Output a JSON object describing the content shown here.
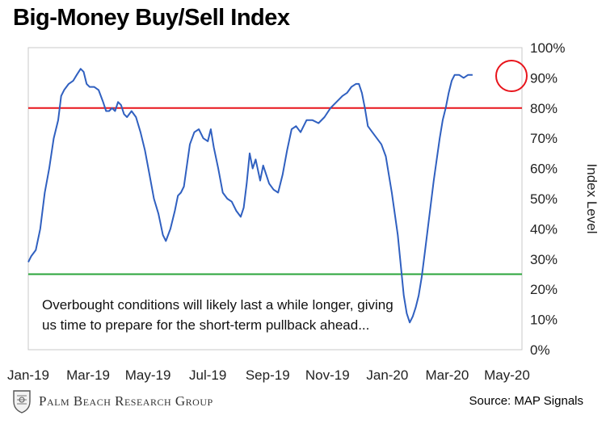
{
  "chart_data": {
    "type": "line",
    "title": "Big-Money Buy/Sell Index",
    "ylabel": "Index Level",
    "ylim": [
      0,
      100
    ],
    "yticks": [
      "0%",
      "10%",
      "20%",
      "30%",
      "40%",
      "50%",
      "60%",
      "70%",
      "80%",
      "90%",
      "100%"
    ],
    "xticks": [
      "Jan-19",
      "Mar-19",
      "May-19",
      "Jul-19",
      "Sep-19",
      "Nov-19",
      "Jan-20",
      "Mar-20",
      "May-20"
    ],
    "xlim_months": [
      0,
      16.5
    ],
    "grid": false,
    "reference_lines": [
      {
        "value": 80,
        "color": "#e8141b"
      },
      {
        "value": 25,
        "color": "#2aa43a"
      }
    ],
    "series": [
      {
        "color": "#3060c0",
        "points": [
          [
            0.0,
            29
          ],
          [
            0.1,
            31
          ],
          [
            0.25,
            33
          ],
          [
            0.4,
            40
          ],
          [
            0.55,
            52
          ],
          [
            0.7,
            60
          ],
          [
            0.85,
            70
          ],
          [
            1.0,
            76
          ],
          [
            1.1,
            84
          ],
          [
            1.2,
            86
          ],
          [
            1.35,
            88
          ],
          [
            1.5,
            89
          ],
          [
            1.62,
            91
          ],
          [
            1.75,
            93
          ],
          [
            1.85,
            92
          ],
          [
            1.95,
            88
          ],
          [
            2.05,
            87
          ],
          [
            2.2,
            87
          ],
          [
            2.35,
            86
          ],
          [
            2.5,
            82
          ],
          [
            2.6,
            79
          ],
          [
            2.7,
            79
          ],
          [
            2.8,
            80
          ],
          [
            2.9,
            79
          ],
          [
            3.0,
            82
          ],
          [
            3.1,
            81
          ],
          [
            3.2,
            78
          ],
          [
            3.3,
            77
          ],
          [
            3.45,
            79
          ],
          [
            3.6,
            77
          ],
          [
            3.75,
            72
          ],
          [
            3.9,
            66
          ],
          [
            4.05,
            58
          ],
          [
            4.2,
            50
          ],
          [
            4.35,
            45
          ],
          [
            4.5,
            38
          ],
          [
            4.6,
            36
          ],
          [
            4.75,
            40
          ],
          [
            4.9,
            46
          ],
          [
            5.0,
            51
          ],
          [
            5.1,
            52
          ],
          [
            5.2,
            54
          ],
          [
            5.3,
            61
          ],
          [
            5.4,
            68
          ],
          [
            5.55,
            72
          ],
          [
            5.7,
            73
          ],
          [
            5.85,
            70
          ],
          [
            6.0,
            69
          ],
          [
            6.1,
            73
          ],
          [
            6.2,
            67
          ],
          [
            6.35,
            60
          ],
          [
            6.5,
            52
          ],
          [
            6.65,
            50
          ],
          [
            6.8,
            49
          ],
          [
            6.95,
            46
          ],
          [
            7.1,
            44
          ],
          [
            7.2,
            47
          ],
          [
            7.3,
            55
          ],
          [
            7.4,
            65
          ],
          [
            7.5,
            60
          ],
          [
            7.6,
            63
          ],
          [
            7.75,
            56
          ],
          [
            7.85,
            61
          ],
          [
            7.95,
            58
          ],
          [
            8.05,
            55
          ],
          [
            8.2,
            53
          ],
          [
            8.35,
            52
          ],
          [
            8.5,
            58
          ],
          [
            8.65,
            66
          ],
          [
            8.8,
            73
          ],
          [
            8.95,
            74
          ],
          [
            9.1,
            72
          ],
          [
            9.3,
            76
          ],
          [
            9.5,
            76
          ],
          [
            9.7,
            75
          ],
          [
            9.9,
            77
          ],
          [
            10.1,
            80
          ],
          [
            10.3,
            82
          ],
          [
            10.5,
            84
          ],
          [
            10.65,
            85
          ],
          [
            10.8,
            87
          ],
          [
            10.95,
            88
          ],
          [
            11.05,
            88
          ],
          [
            11.15,
            85
          ],
          [
            11.25,
            80
          ],
          [
            11.35,
            74
          ],
          [
            11.5,
            72
          ],
          [
            11.65,
            70
          ],
          [
            11.8,
            68
          ],
          [
            11.95,
            64
          ],
          [
            12.05,
            58
          ],
          [
            12.15,
            52
          ],
          [
            12.25,
            45
          ],
          [
            12.35,
            38
          ],
          [
            12.45,
            28
          ],
          [
            12.55,
            18
          ],
          [
            12.65,
            12
          ],
          [
            12.75,
            9
          ],
          [
            12.85,
            11
          ],
          [
            12.95,
            14
          ],
          [
            13.05,
            18
          ],
          [
            13.15,
            24
          ],
          [
            13.25,
            32
          ],
          [
            13.35,
            40
          ],
          [
            13.45,
            48
          ],
          [
            13.55,
            56
          ],
          [
            13.65,
            63
          ],
          [
            13.75,
            70
          ],
          [
            13.85,
            76
          ],
          [
            13.95,
            80
          ],
          [
            14.05,
            85
          ],
          [
            14.15,
            89
          ],
          [
            14.25,
            91
          ],
          [
            14.4,
            91
          ],
          [
            14.55,
            90
          ],
          [
            14.7,
            91
          ],
          [
            14.85,
            91
          ]
        ]
      }
    ]
  },
  "annotation": {
    "line1": "Overbought conditions will likely last a while longer, giving",
    "line2": "us time to prepare for the short-term pullback ahead..."
  },
  "highlight_circle_color": "#e8141b",
  "footer": {
    "brand": "Palm Beach Research Group",
    "source": "Source: MAP Signals"
  }
}
